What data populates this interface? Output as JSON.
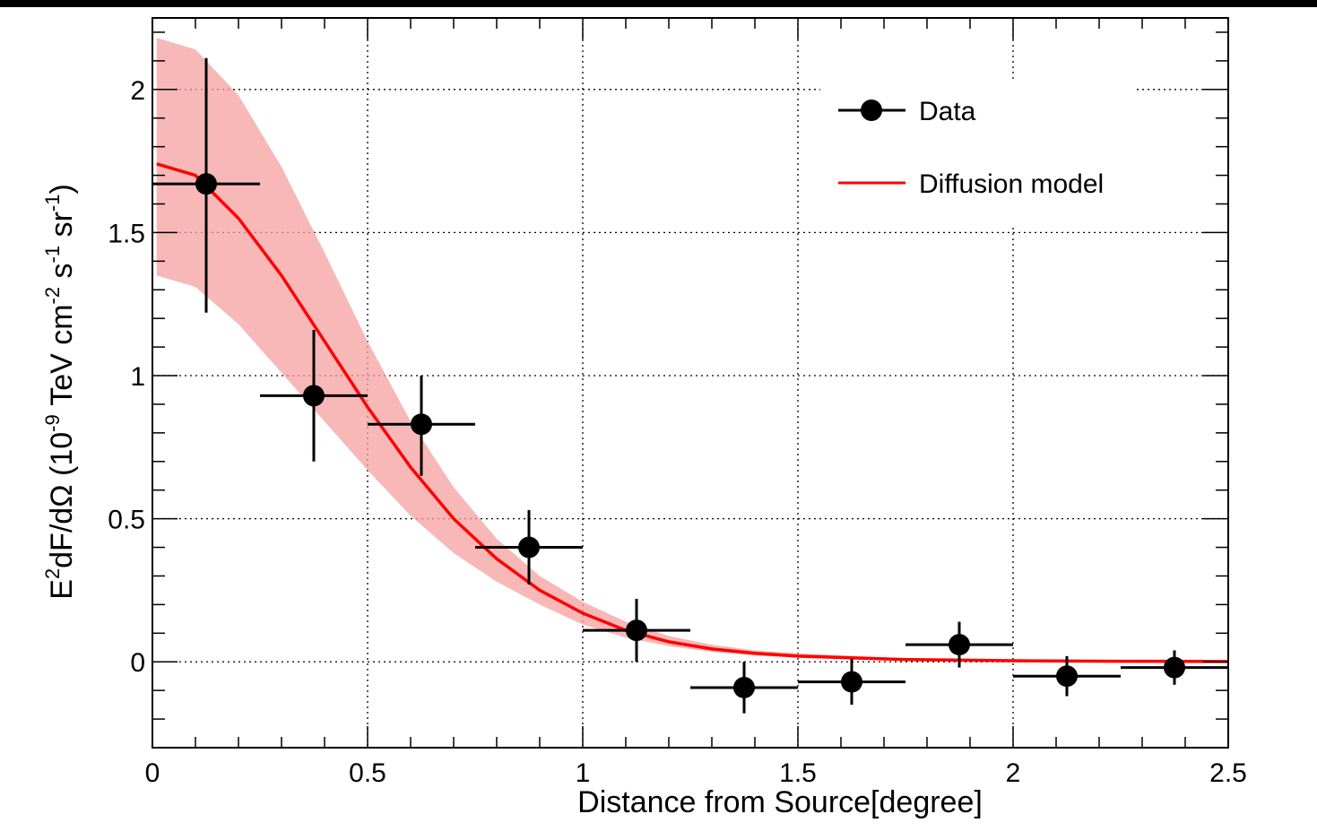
{
  "chart_data": {
    "type": "scatter",
    "xlabel": "Distance from Source[degree]",
    "ylabel": {
      "base": "E",
      "base_sup": "2",
      "mid": "dF/dΩ (10",
      "mid_sup": "-9",
      "unit1": " TeV cm",
      "unit1_sup": "-2",
      "unit2": " s",
      "unit2_sup": "-1",
      "unit3": " sr",
      "unit3_sup": "-1",
      "close": ")"
    },
    "xlim": [
      0,
      2.5
    ],
    "ylim": [
      -0.3,
      2.25
    ],
    "xticks": [
      0,
      0.5,
      1,
      1.5,
      2,
      2.5
    ],
    "xtick_labels": [
      "0",
      "0.5",
      "1",
      "1.5",
      "2",
      "2.5"
    ],
    "yticks": [
      0,
      0.5,
      1,
      1.5,
      2
    ],
    "ytick_labels": [
      "0",
      "0.5",
      "1",
      "1.5",
      "2"
    ],
    "grid": true,
    "legend_position": "top-right",
    "series": [
      {
        "name": "Data",
        "kind": "points",
        "color": "#000000",
        "x": [
          0.125,
          0.375,
          0.625,
          0.875,
          1.125,
          1.375,
          1.625,
          1.875,
          2.125,
          2.375
        ],
        "y": [
          1.67,
          0.93,
          0.83,
          0.4,
          0.11,
          -0.09,
          -0.07,
          0.06,
          -0.05,
          -0.02
        ],
        "xerr": [
          0.125,
          0.125,
          0.125,
          0.125,
          0.125,
          0.125,
          0.125,
          0.125,
          0.125,
          0.125
        ],
        "yerr_up": [
          0.44,
          0.23,
          0.17,
          0.13,
          0.11,
          0.09,
          0.08,
          0.08,
          0.07,
          0.06
        ],
        "yerr_down": [
          0.45,
          0.23,
          0.18,
          0.13,
          0.11,
          0.09,
          0.08,
          0.08,
          0.07,
          0.06
        ]
      },
      {
        "name": "Diffusion model",
        "kind": "line",
        "color": "#ff0000",
        "x": [
          0.01,
          0.1,
          0.2,
          0.3,
          0.4,
          0.5,
          0.6,
          0.7,
          0.8,
          0.9,
          1.0,
          1.1,
          1.2,
          1.3,
          1.4,
          1.5,
          1.75,
          2.0,
          2.25,
          2.5
        ],
        "y": [
          1.74,
          1.7,
          1.55,
          1.35,
          1.12,
          0.89,
          0.68,
          0.5,
          0.36,
          0.25,
          0.17,
          0.11,
          0.07,
          0.045,
          0.03,
          0.02,
          0.008,
          0.004,
          0.002,
          0.001
        ],
        "band_upper": [
          2.18,
          2.14,
          1.98,
          1.73,
          1.43,
          1.12,
          0.84,
          0.61,
          0.43,
          0.3,
          0.21,
          0.14,
          0.09,
          0.06,
          0.04,
          0.03,
          0.012,
          0.006,
          0.003,
          0.002
        ],
        "band_lower": [
          1.35,
          1.31,
          1.18,
          1.01,
          0.84,
          0.67,
          0.51,
          0.38,
          0.28,
          0.2,
          0.13,
          0.085,
          0.055,
          0.035,
          0.022,
          0.014,
          0.005,
          0.002,
          0.001,
          0.0
        ],
        "band_color": "#f5a0a0"
      }
    ]
  }
}
